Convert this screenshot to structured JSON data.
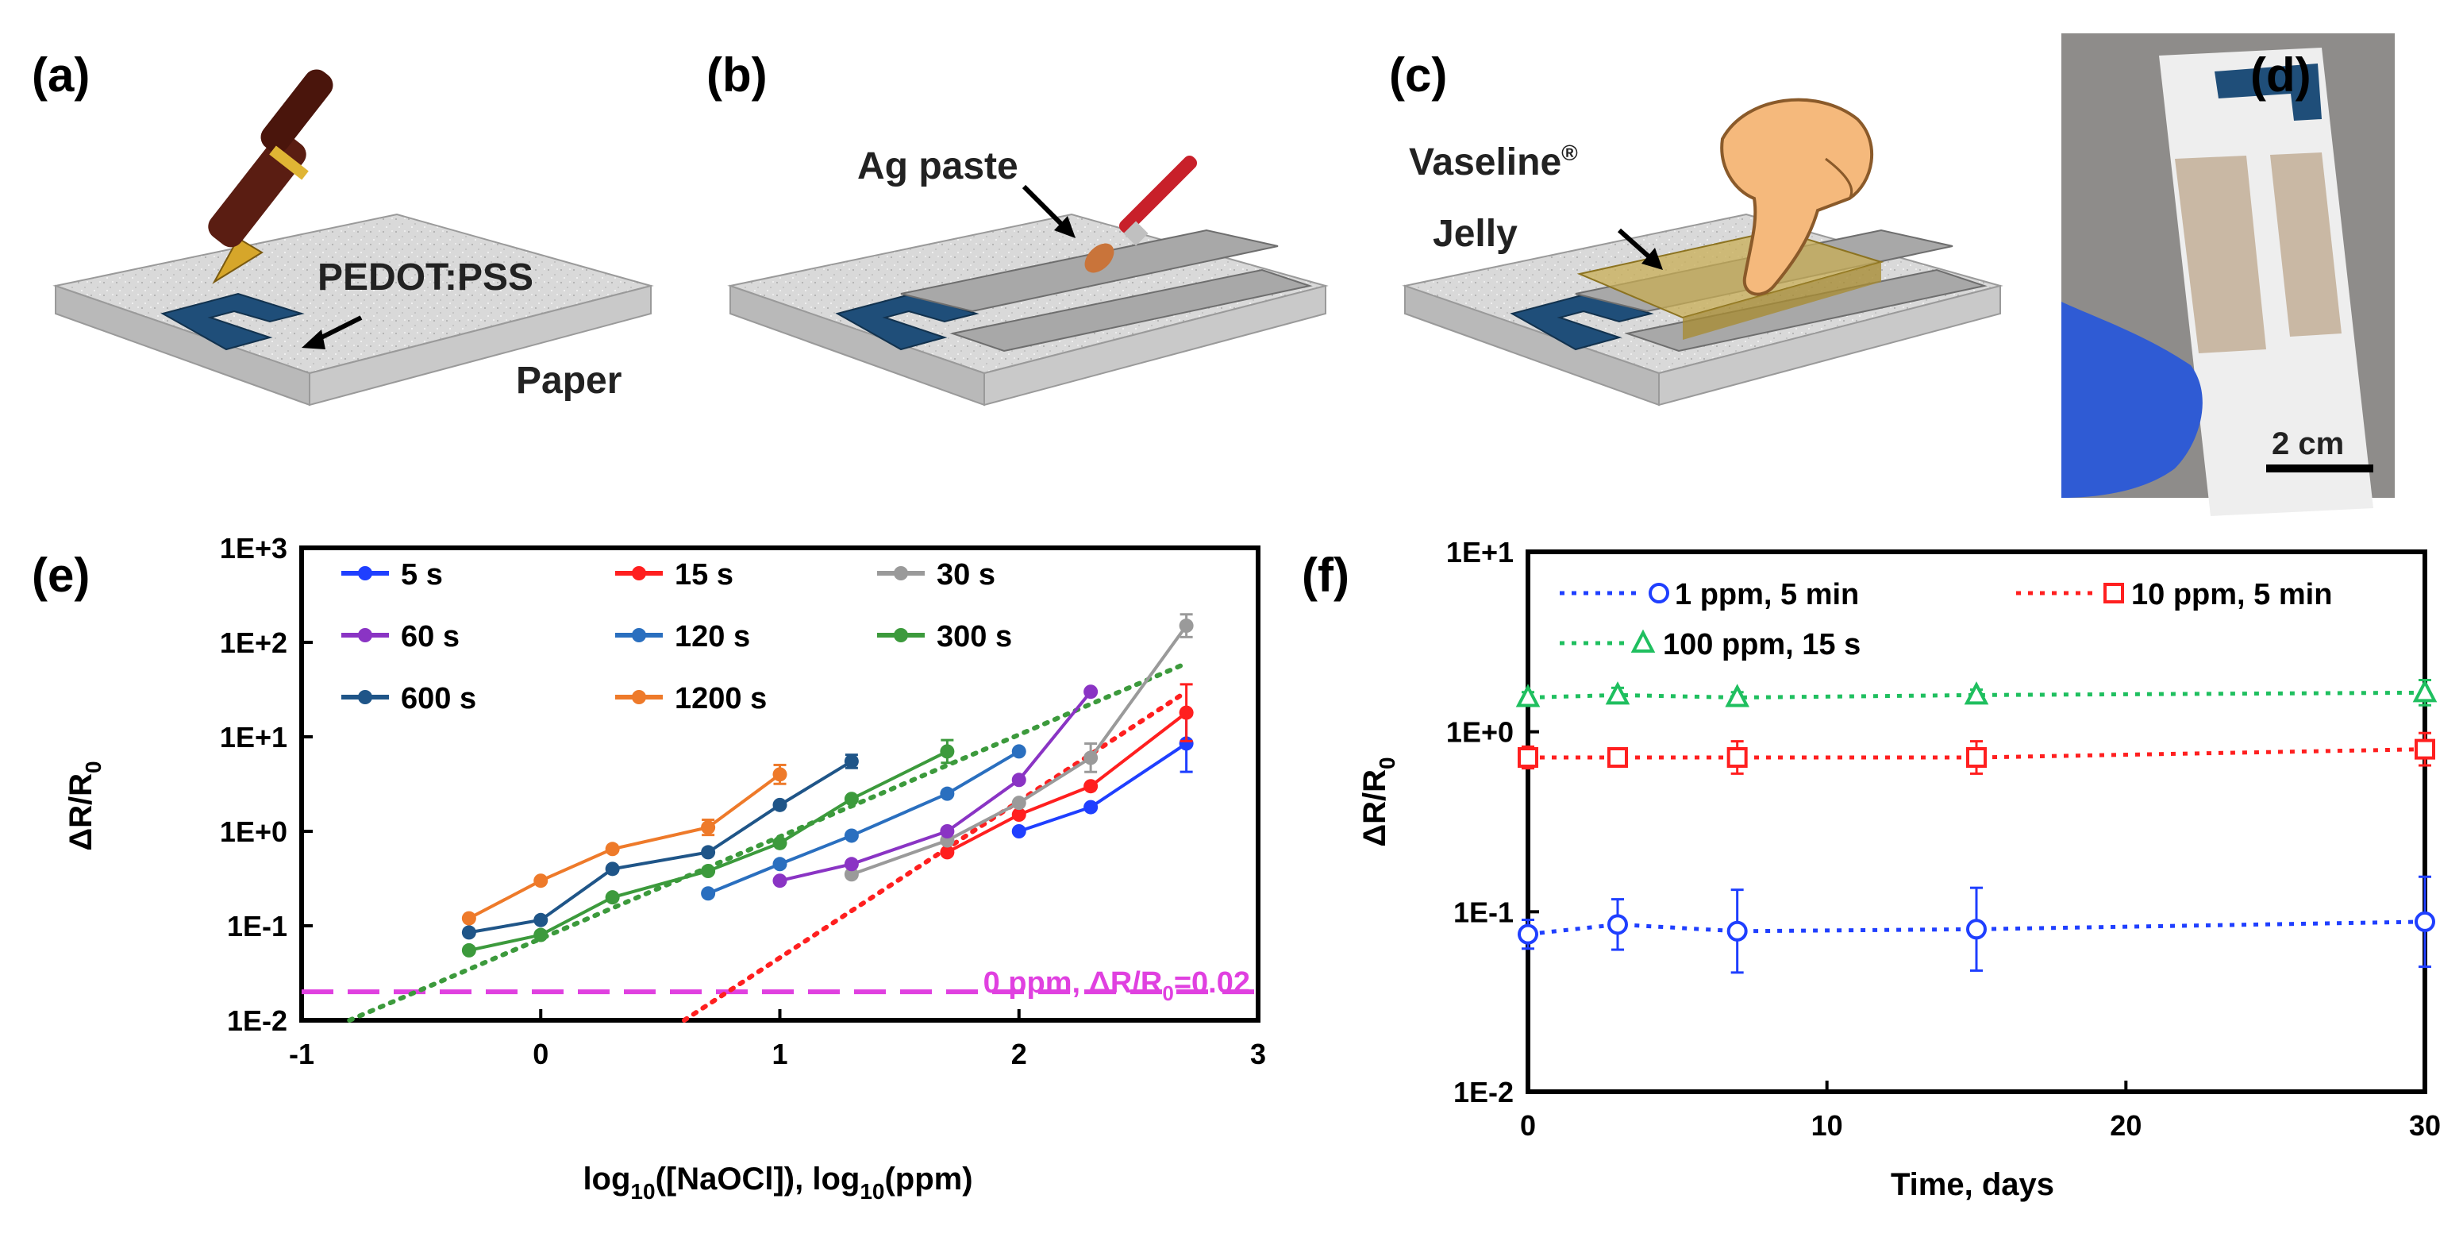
{
  "figure": {
    "panels": {
      "a": {
        "label": "(a)",
        "callouts": [
          "PEDOT:PSS",
          "Paper"
        ]
      },
      "b": {
        "label": "(b)",
        "callouts": [
          "Ag paste"
        ]
      },
      "c": {
        "label": "(c)",
        "callouts": [
          "Vaseline",
          "®",
          "Jelly"
        ]
      },
      "d": {
        "label": "(d)",
        "scale_bar": "2 cm"
      }
    }
  },
  "colors": {
    "paper": "#dcdcdc",
    "pedot": "#1f4e79",
    "silver": "#9c9c9c",
    "vaseline": "#c8ad55",
    "magenta": "#e040e0"
  },
  "chart_data": [
    {
      "panel_label": "(e)",
      "type": "line",
      "xlabel_parts": [
        "log",
        "10",
        "([NaOCl]), log",
        "10",
        "(ppm)"
      ],
      "ylabel_parts": [
        "ΔR/R",
        "0"
      ],
      "xlim": [
        -1,
        3
      ],
      "xticks": [
        "-1",
        "0",
        "1",
        "2",
        "3"
      ],
      "ylim_log10": [
        -2,
        3
      ],
      "yticks": [
        "1E-2",
        "1E-1",
        "1E+0",
        "1E+1",
        "1E+2",
        "1E+3"
      ],
      "series": [
        {
          "name": "5 s",
          "color": "#1f3fff",
          "x": [
            2.0,
            2.3,
            2.7
          ],
          "y": [
            1.0,
            1.8,
            8.5
          ],
          "err": [
            0,
            0,
            0.3
          ]
        },
        {
          "name": "15 s",
          "color": "#ff1f1f",
          "x": [
            1.7,
            2.0,
            2.3,
            2.7
          ],
          "y": [
            0.6,
            1.5,
            3.0,
            18
          ],
          "err": [
            0,
            0,
            0,
            0.3
          ]
        },
        {
          "name": "30 s",
          "color": "#9a9a9a",
          "x": [
            1.3,
            1.7,
            2.0,
            2.3,
            2.7
          ],
          "y": [
            0.35,
            0.8,
            2.0,
            6.0,
            150
          ],
          "err": [
            0,
            0,
            0,
            0.15,
            0.12
          ]
        },
        {
          "name": "60 s",
          "color": "#8a34c4",
          "x": [
            1.0,
            1.3,
            1.7,
            2.0,
            2.3
          ],
          "y": [
            0.3,
            0.45,
            1.0,
            3.5,
            30
          ],
          "err": [
            0,
            0,
            0,
            0,
            0
          ]
        },
        {
          "name": "120 s",
          "color": "#2a6fbf",
          "x": [
            0.7,
            1.0,
            1.3,
            1.7,
            2.0
          ],
          "y": [
            0.22,
            0.45,
            0.9,
            2.5,
            7.0
          ],
          "err": [
            0,
            0,
            0,
            0,
            0
          ]
        },
        {
          "name": "300 s",
          "color": "#3c9a3c",
          "x": [
            -0.3,
            0.0,
            0.3,
            0.7,
            1.0,
            1.3,
            1.7
          ],
          "y": [
            0.055,
            0.08,
            0.2,
            0.38,
            0.75,
            2.2,
            7.0
          ],
          "err": [
            0,
            0,
            0,
            0,
            0,
            0,
            0.12
          ]
        },
        {
          "name": "600 s",
          "color": "#1f5588",
          "x": [
            -0.3,
            0.0,
            0.3,
            0.7,
            1.0,
            1.3
          ],
          "y": [
            0.085,
            0.115,
            0.4,
            0.6,
            1.9,
            5.5
          ],
          "err": [
            0,
            0,
            0,
            0,
            0,
            0.07
          ]
        },
        {
          "name": "1200 s",
          "color": "#ee7a2a",
          "x": [
            -0.3,
            0.0,
            0.3,
            0.7,
            1.0
          ],
          "y": [
            0.12,
            0.3,
            0.65,
            1.1,
            4.0
          ],
          "err": [
            0,
            0,
            0,
            0.08,
            0.1
          ]
        }
      ],
      "trendlines": [
        {
          "color": "#3c9a3c",
          "x": [
            -0.8,
            2.7
          ],
          "y": [
            0.01,
            60
          ]
        },
        {
          "color": "#ff1f1f",
          "x": [
            0.6,
            2.7
          ],
          "y": [
            0.01,
            30
          ]
        }
      ],
      "baseline": {
        "y": 0.02,
        "color": "#e040e0",
        "label_parts": [
          "0 ppm, ΔR/R",
          "0",
          "=0.02"
        ]
      }
    },
    {
      "panel_label": "(f)",
      "type": "scatter",
      "xlabel": "Time, days",
      "ylabel_parts": [
        "ΔR/R",
        "0"
      ],
      "xlim": [
        0,
        30
      ],
      "xticks": [
        "0",
        "10",
        "20",
        "30"
      ],
      "ylim_log10": [
        -2,
        1
      ],
      "yticks": [
        "1E-2",
        "1E-1",
        "1E+0",
        "1E+1"
      ],
      "series": [
        {
          "name": "1 ppm, 5 min",
          "color": "#1f3fff",
          "marker": "circle",
          "x": [
            0,
            3,
            7,
            15,
            30
          ],
          "y": [
            0.075,
            0.085,
            0.078,
            0.08,
            0.088
          ],
          "err": [
            0.08,
            0.14,
            0.23,
            0.23,
            0.25
          ]
        },
        {
          "name": "10 ppm, 5 min",
          "color": "#ff1f1f",
          "marker": "square",
          "x": [
            0,
            3,
            7,
            15,
            30
          ],
          "y": [
            0.72,
            0.72,
            0.72,
            0.72,
            0.8
          ],
          "err": [
            0.06,
            0.05,
            0.09,
            0.09,
            0.09
          ]
        },
        {
          "name": "100 ppm, 15 s",
          "color": "#1fbf5f",
          "marker": "triangle",
          "x": [
            0,
            3,
            7,
            15,
            30
          ],
          "y": [
            1.55,
            1.6,
            1.55,
            1.6,
            1.65
          ],
          "err": [
            0.03,
            0.04,
            0.03,
            0.03,
            0.07
          ]
        }
      ]
    }
  ]
}
